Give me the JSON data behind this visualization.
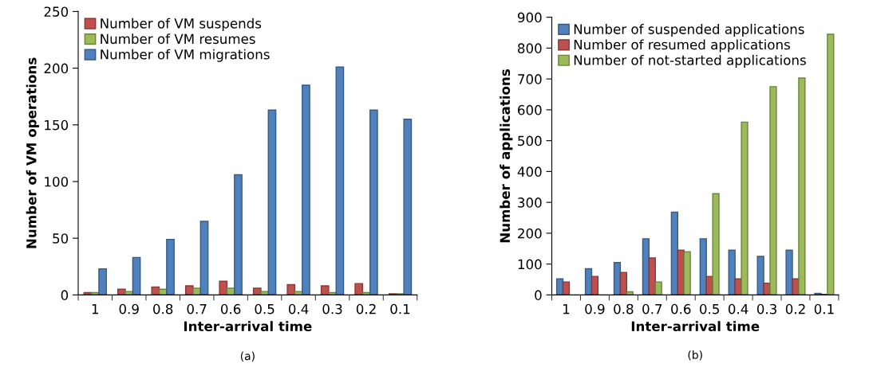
{
  "chart_data": [
    {
      "type": "bar",
      "xlabel": "Inter-arrival time",
      "ylabel": "Number of VM operations",
      "annotations": [
        "(a)"
      ],
      "categories": [
        "1",
        "0.9",
        "0.8",
        "0.7",
        "0.6",
        "0.5",
        "0.4",
        "0.3",
        "0.2",
        "0.1"
      ],
      "series": [
        {
          "name": "Number of VM suspends",
          "color": "#c0504d",
          "values": [
            2,
            5,
            7,
            8,
            12,
            6,
            9,
            8,
            10,
            1
          ]
        },
        {
          "name": "Number of VM resumes",
          "color": "#9bbb59",
          "values": [
            2,
            3,
            5,
            6,
            6,
            3,
            3,
            2,
            2,
            1
          ]
        },
        {
          "name": "Number of VM migrations",
          "color": "#4f81bd",
          "values": [
            23,
            33,
            49,
            65,
            106,
            163,
            185,
            201,
            163,
            155
          ]
        }
      ],
      "ylim": [
        0,
        250
      ],
      "yticks": [
        0,
        50,
        100,
        150,
        200,
        250
      ],
      "grid": false,
      "legend": "top left"
    },
    {
      "type": "bar",
      "xlabel": "Inter-arrival time",
      "ylabel": "Number of applications",
      "annotations": [
        "(b)"
      ],
      "categories": [
        "1",
        "0.9",
        "0.8",
        "0.7",
        "0.6",
        "0.5",
        "0.4",
        "0.3",
        "0.2",
        "0.1"
      ],
      "series": [
        {
          "name": "Number of suspended applications",
          "color": "#4f81bd",
          "values": [
            52,
            85,
            105,
            182,
            268,
            182,
            145,
            125,
            145,
            5
          ]
        },
        {
          "name": "Number of resumed applications",
          "color": "#c0504d",
          "values": [
            42,
            60,
            73,
            120,
            145,
            60,
            52,
            38,
            52,
            2
          ]
        },
        {
          "name": "Number of not-started applications",
          "color": "#9bbb59",
          "values": [
            null,
            null,
            10,
            42,
            140,
            328,
            560,
            675,
            703,
            845
          ]
        }
      ],
      "ylim": [
        0,
        900
      ],
      "yticks": [
        0,
        100,
        200,
        300,
        400,
        500,
        600,
        700,
        800,
        900
      ],
      "grid": false,
      "legend": "top left"
    }
  ]
}
